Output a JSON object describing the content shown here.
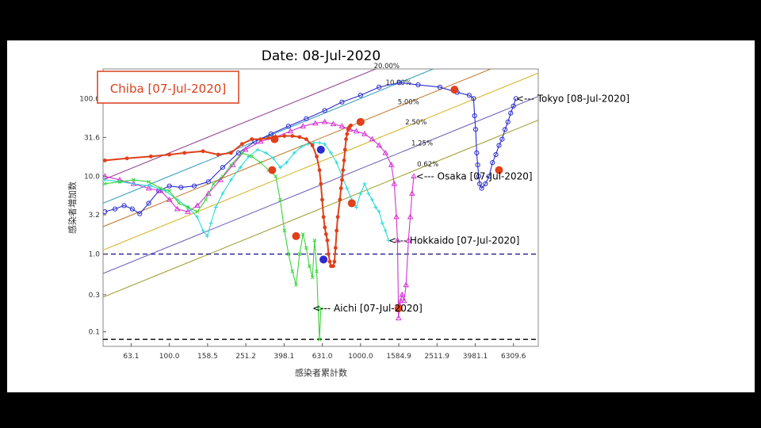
{
  "chart_data": {
    "type": "line",
    "title": "Date: 08-Jul-2020",
    "xlabel": "感染者累計数",
    "ylabel": "感染者増加数",
    "x_scale": "log",
    "y_scale": "log",
    "xlim": [
      45,
      8500
    ],
    "ylim": [
      0.065,
      240
    ],
    "x_ticks": [
      "63.1",
      "100.0",
      "158.5",
      "251.2",
      "398.1",
      "631.0",
      "1000.0",
      "1584.9",
      "2511.9",
      "3981.1",
      "6309.6"
    ],
    "y_ticks": [
      "0.1",
      "0.3",
      "1.0",
      "3.2",
      "10.0",
      "31.6",
      "100.0"
    ],
    "highlight_label": "Chiba [07-Jul-2020]",
    "growth_lines": [
      {
        "label": "20.00%",
        "rate": 0.2,
        "color": "#8e3b8e"
      },
      {
        "label": "10.00%",
        "rate": 0.1,
        "color": "#2a9ab4"
      },
      {
        "label": "5.00%",
        "rate": 0.05,
        "color": "#c0772a"
      },
      {
        "label": "2.50%",
        "rate": 0.025,
        "color": "#d4b21c"
      },
      {
        "label": "1.25%",
        "rate": 0.0125,
        "color": "#6a58b8"
      },
      {
        "label": "0.62%",
        "rate": 0.0062,
        "color": "#9a9a2a"
      }
    ],
    "reference_lines": [
      {
        "y": 1.0,
        "color": "#1a1a8c"
      },
      {
        "y": 0.08,
        "color": "#000000"
      }
    ],
    "annotations": [
      {
        "text": "<--- Tokyo [08-Jul-2020]",
        "x": 6500,
        "y": 100,
        "color": "#000"
      },
      {
        "text": "<--- Osaka [07-Jul-2020]",
        "x": 1950,
        "y": 10,
        "color": "#000"
      },
      {
        "text": "<--- Hokkaido [07-Jul-2020]",
        "x": 1400,
        "y": 1.5,
        "color": "#000"
      },
      {
        "text": "<--- Aichi [07-Jul-2020]",
        "x": 560,
        "y": 0.2,
        "color": "#000"
      }
    ],
    "series": [
      {
        "name": "Tokyo",
        "color": "#2b2bd0",
        "marker": "circle",
        "x": [
          46,
          52,
          58,
          64,
          70,
          78,
          88,
          100,
          115,
          135,
          160,
          190,
          230,
          280,
          340,
          420,
          520,
          650,
          800,
          1000,
          1250,
          1600,
          2000,
          2600,
          3200,
          3700,
          3900,
          3950,
          4000,
          4050,
          4100,
          4150,
          4200,
          4300,
          4500,
          4700,
          4900,
          5100,
          5300,
          5500,
          5700,
          5900,
          6100,
          6300,
          6500
        ],
        "y": [
          3.5,
          3.8,
          4.2,
          3.8,
          3.3,
          4.5,
          6.5,
          7.5,
          7.2,
          7.5,
          8.5,
          13,
          20,
          28,
          35,
          44,
          55,
          70,
          90,
          110,
          140,
          160,
          150,
          140,
          120,
          110,
          100,
          60,
          40,
          20,
          14,
          10,
          8,
          7,
          8,
          10,
          15,
          19,
          25,
          30,
          40,
          50,
          65,
          80,
          100
        ]
      },
      {
        "name": "Osaka",
        "color": "#d433d4",
        "marker": "triangle",
        "x": [
          46,
          55,
          65,
          78,
          90,
          100,
          110,
          125,
          140,
          160,
          185,
          215,
          250,
          300,
          360,
          430,
          500,
          580,
          650,
          720,
          800,
          880,
          950,
          1050,
          1150,
          1250,
          1350,
          1450,
          1500,
          1540,
          1560,
          1580,
          1600,
          1620,
          1650,
          1690,
          1730,
          1780,
          1820,
          1860,
          1900
        ],
        "y": [
          10,
          9,
          8,
          7,
          6.5,
          5,
          3.8,
          3.5,
          4.2,
          6,
          9,
          14,
          22,
          28,
          32,
          38,
          44,
          48,
          50,
          47,
          44,
          40,
          38,
          35,
          30,
          25,
          20,
          14,
          8,
          3,
          1.5,
          0.15,
          0.22,
          0.25,
          0.3,
          0.25,
          0.4,
          1.5,
          3,
          6,
          10
        ]
      },
      {
        "name": "Hokkaido",
        "color": "#2bd8d8",
        "marker": "plus",
        "x": [
          46,
          55,
          65,
          80,
          95,
          110,
          125,
          140,
          150,
          158,
          165,
          175,
          190,
          210,
          235,
          260,
          290,
          320,
          350,
          380,
          410,
          450,
          490,
          530,
          570,
          610,
          650,
          700,
          750,
          800,
          850,
          900,
          950,
          1000,
          1050,
          1100,
          1150,
          1200,
          1250,
          1300,
          1350,
          1400
        ],
        "y": [
          9,
          8.5,
          8,
          7.5,
          6.5,
          5,
          4,
          3,
          2,
          1.7,
          2.5,
          4,
          6,
          9,
          13,
          18,
          22,
          20,
          17,
          13,
          15,
          20,
          24,
          26,
          27,
          27,
          26,
          20,
          15,
          10,
          7,
          5,
          4,
          6,
          8,
          6,
          5,
          4,
          3.5,
          2.5,
          2,
          1.5
        ]
      },
      {
        "name": "Aichi",
        "color": "#3bd43b",
        "marker": "x",
        "x": [
          46,
          55,
          65,
          78,
          90,
          100,
          112,
          125,
          140,
          155,
          170,
          190,
          210,
          240,
          270,
          300,
          330,
          360,
          380,
          400,
          420,
          440,
          460,
          480,
          500,
          520,
          540,
          560,
          575,
          590,
          600,
          610,
          620
        ],
        "y": [
          8,
          8.5,
          9,
          8.5,
          7,
          6.5,
          4.5,
          4,
          3.5,
          5,
          8,
          10,
          14,
          20,
          18,
          15,
          12,
          10,
          5,
          2,
          1,
          0.6,
          0.4,
          1,
          1.8,
          1.2,
          0.7,
          0.5,
          1.5,
          0.6,
          0.2,
          0.08,
          0.2
        ]
      },
      {
        "name": "Chiba",
        "color": "#e0401a",
        "marker": "dot",
        "x": [
          46,
          60,
          80,
          100,
          120,
          150,
          180,
          210,
          240,
          270,
          300,
          330,
          360,
          400,
          440,
          480,
          520,
          560,
          590,
          610,
          620,
          630,
          640,
          650,
          660,
          670,
          680,
          690,
          700,
          710,
          720,
          730,
          740,
          750,
          760,
          780,
          790,
          800,
          810,
          820,
          830,
          840,
          850,
          860,
          870,
          880,
          890
        ],
        "y": [
          16,
          17,
          18,
          19,
          20,
          21,
          19,
          20,
          26,
          30,
          30,
          31,
          32,
          33,
          33,
          32,
          30,
          25,
          18,
          12,
          8,
          5,
          3,
          2.2,
          1.8,
          1.5,
          1.0,
          0.8,
          0.7,
          0.7,
          0.7,
          0.8,
          1.2,
          2,
          3,
          5,
          7,
          9,
          12,
          16,
          22,
          30,
          35,
          40,
          42,
          44,
          45
        ]
      }
    ],
    "big_markers": [
      {
        "series": "Chiba",
        "x": 3100,
        "y": 130,
        "color": "#e0401a"
      },
      {
        "series": "Chiba",
        "x": 5300,
        "y": 12,
        "color": "#e0401a"
      },
      {
        "series": "Chiba",
        "x": 1000,
        "y": 50,
        "color": "#e0401a"
      },
      {
        "series": "Chiba",
        "x": 355,
        "y": 30,
        "color": "#e0401a"
      },
      {
        "series": "Chiba",
        "x": 345,
        "y": 12,
        "color": "#e0401a"
      },
      {
        "series": "Chiba",
        "x": 900,
        "y": 4.5,
        "color": "#e0401a"
      },
      {
        "series": "Chiba",
        "x": 460,
        "y": 1.7,
        "color": "#e0401a"
      },
      {
        "series": "Chiba",
        "x": 1580,
        "y": 0.2,
        "color": "#e0401a"
      },
      {
        "series": "Chiba",
        "x": 620,
        "y": 22,
        "color": "#2b2bd0"
      },
      {
        "series": "Chiba",
        "x": 640,
        "y": 0.85,
        "color": "#2b2bd0"
      }
    ]
  }
}
